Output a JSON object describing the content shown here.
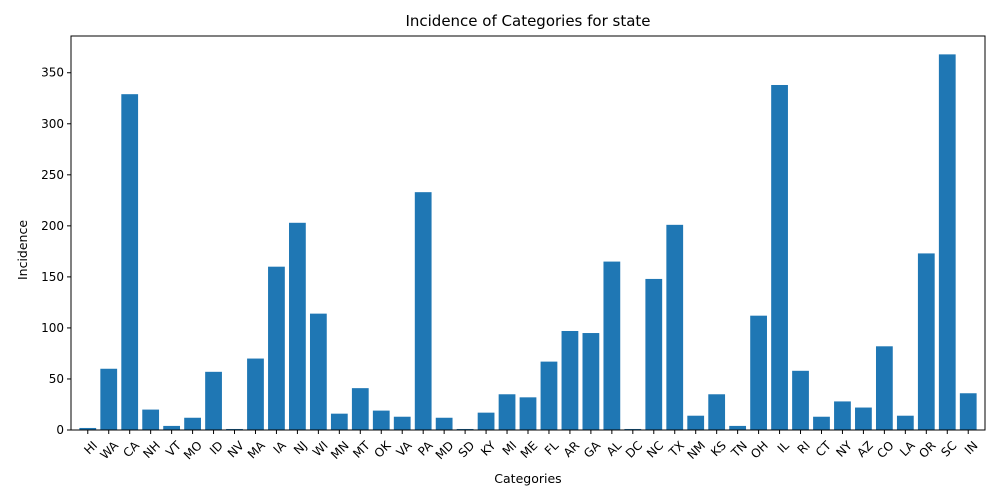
{
  "chart_data": {
    "type": "bar",
    "title": "Incidence of Categories for state",
    "xlabel": "Categories",
    "ylabel": "Incidence",
    "categories": [
      "HI",
      "WA",
      "CA",
      "NH",
      "VT",
      "MO",
      "ID",
      "NV",
      "MA",
      "IA",
      "NJ",
      "WI",
      "MN",
      "MT",
      "OK",
      "VA",
      "PA",
      "MD",
      "SD",
      "KY",
      "MI",
      "ME",
      "FL",
      "AR",
      "GA",
      "AL",
      "DC",
      "NC",
      "TX",
      "NM",
      "KS",
      "TN",
      "OH",
      "IL",
      "RI",
      "CT",
      "NY",
      "AZ",
      "CO",
      "LA",
      "OR",
      "SC",
      "IN"
    ],
    "values": [
      2,
      60,
      329,
      20,
      4,
      12,
      57,
      1,
      70,
      160,
      203,
      114,
      16,
      41,
      19,
      13,
      233,
      12,
      1,
      17,
      35,
      32,
      67,
      97,
      95,
      165,
      1,
      148,
      201,
      14,
      35,
      4,
      112,
      338,
      58,
      13,
      28,
      22,
      82,
      14,
      173,
      368,
      36
    ],
    "ylim": [
      0,
      386
    ],
    "yticks": [
      0,
      50,
      100,
      150,
      200,
      250,
      300,
      350
    ],
    "grid": false,
    "bar_color": "#1f77b4",
    "xtick_rotation_deg": 45
  }
}
